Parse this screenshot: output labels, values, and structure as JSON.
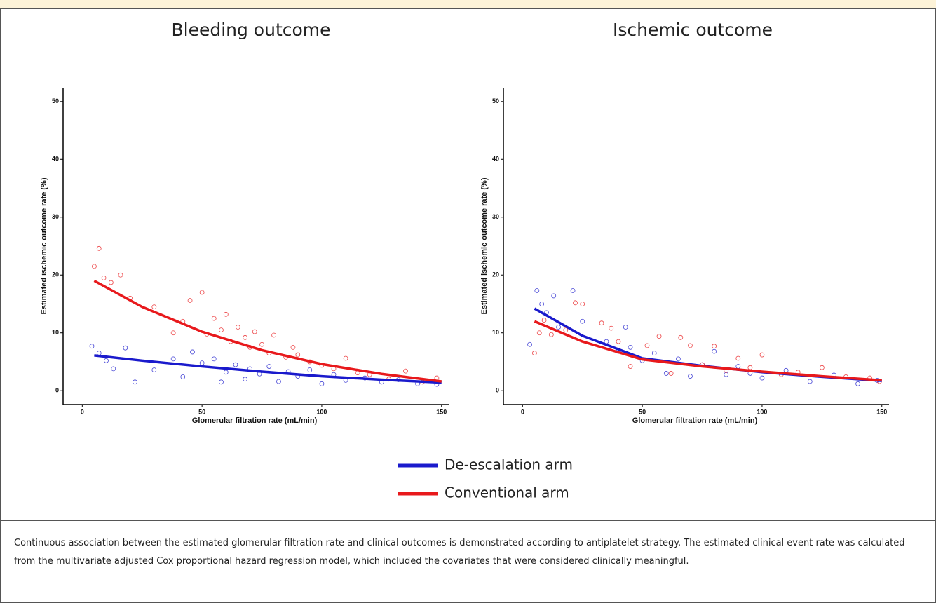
{
  "chart_data": [
    {
      "type": "scatter",
      "title": "Bleeding outcome",
      "x_label": "Glomerular filtration rate (mL/min)",
      "y_label": "Estimated ischemic outcome rate (%)",
      "xlim": [
        -8,
        153
      ],
      "ylim": [
        -2.4,
        52.4
      ],
      "xticks": [
        0,
        50,
        100,
        150
      ],
      "yticks": [
        0,
        10,
        20,
        30,
        40,
        50
      ],
      "series": [
        {
          "color": "#1a1acc",
          "points": {
            "x": [
              4,
              7,
              10,
              13,
              18,
              22,
              30,
              38,
              42,
              46,
              50,
              55,
              58,
              60,
              64,
              68,
              70,
              74,
              78,
              82,
              86,
              90,
              95,
              100,
              105,
              110,
              118,
              125,
              132,
              140,
              148
            ],
            "values": [
              7.7,
              6.5,
              5.2,
              3.8,
              7.4,
              1.5,
              3.6,
              5.5,
              2.4,
              6.7,
              4.8,
              5.5,
              1.5,
              3.2,
              4.5,
              2,
              3.8,
              2.9,
              4.2,
              1.6,
              3.3,
              2.5,
              3.6,
              1.2,
              2.8,
              1.8,
              2.2,
              1.5,
              1.9,
              1.2,
              1.1
            ]
          },
          "fit": {
            "x": [
              5,
              25,
              50,
              75,
              100,
              125,
              150
            ],
            "values": [
              6.1,
              5.2,
              4.2,
              3.3,
              2.5,
              1.9,
              1.4
            ]
          }
        },
        {
          "color": "#e8191c",
          "points": {
            "x": [
              5,
              7,
              9,
              12,
              16,
              20,
              30,
              38,
              42,
              45,
              50,
              52,
              55,
              58,
              60,
              62,
              65,
              68,
              70,
              72,
              75,
              78,
              80,
              85,
              88,
              90,
              95,
              100,
              105,
              110,
              115,
              120,
              128,
              135,
              142,
              148
            ],
            "values": [
              21.5,
              24.6,
              19.5,
              18.7,
              20,
              16,
              14.5,
              10,
              12,
              15.6,
              17,
              9.8,
              12.5,
              10.5,
              13.2,
              8.5,
              11,
              9.2,
              7.5,
              10.2,
              8,
              6.5,
              9.6,
              5.8,
              7.5,
              6.2,
              5,
              4.4,
              3.8,
              5.6,
              3.1,
              2.8,
              2,
              3.4,
              1.5,
              2.2
            ]
          },
          "fit": {
            "x": [
              5,
              25,
              50,
              75,
              100,
              125,
              150
            ],
            "values": [
              19,
              14.5,
              10.2,
              7,
              4.6,
              2.9,
              1.6
            ]
          }
        }
      ]
    },
    {
      "type": "scatter",
      "title": "Ischemic outcome",
      "x_label": "Glomerular filtration rate (mL/min)",
      "y_label": "Estimated ischemic outcome rate (%)",
      "xlim": [
        -8,
        153
      ],
      "ylim": [
        -2.4,
        52.4
      ],
      "xticks": [
        0,
        50,
        100,
        150
      ],
      "yticks": [
        0,
        10,
        20,
        30,
        40,
        50
      ],
      "series": [
        {
          "color": "#1a1acc",
          "points": {
            "x": [
              3,
              6,
              8,
              10,
              13,
              15,
              21,
              25,
              35,
              40,
              43,
              45,
              50,
              55,
              60,
              65,
              70,
              75,
              80,
              85,
              90,
              95,
              100,
              110,
              120,
              130,
              140,
              148
            ],
            "values": [
              8,
              17.3,
              15,
              13.5,
              16.4,
              11,
              17.3,
              12,
              8.5,
              6.8,
              11,
              7.5,
              5.2,
              6.5,
              3,
              5.5,
              2.5,
              4.5,
              6.8,
              2.8,
              4.2,
              3,
              2.2,
              3.5,
              1.6,
              2.7,
              1.2,
              1.8
            ]
          },
          "fit": {
            "x": [
              5,
              25,
              50,
              75,
              100,
              125,
              150
            ],
            "values": [
              14.2,
              9.5,
              5.6,
              4.3,
              3.2,
              2.4,
              1.7
            ]
          }
        },
        {
          "color": "#e8191c",
          "points": {
            "x": [
              5,
              7,
              9,
              12,
              18,
              22,
              25,
              33,
              37,
              40,
              45,
              52,
              57,
              62,
              66,
              70,
              75,
              80,
              85,
              90,
              95,
              100,
              108,
              115,
              125,
              135,
              145,
              149
            ],
            "values": [
              6.5,
              10,
              12.2,
              9.7,
              10.5,
              15.2,
              15,
              11.7,
              10.8,
              8.5,
              4.2,
              7.8,
              9.4,
              3,
              9.2,
              7.8,
              4.5,
              7.7,
              3.5,
              5.6,
              4,
              6.2,
              2.8,
              3.2,
              4,
              2.4,
              2.2,
              1.6
            ]
          },
          "fit": {
            "x": [
              5,
              25,
              50,
              75,
              100,
              125,
              150
            ],
            "values": [
              12,
              8.5,
              5.4,
              4.2,
              3.3,
              2.5,
              1.8
            ]
          }
        }
      ]
    }
  ],
  "legend": [
    {
      "name": "De-escalation arm",
      "color": "#1a1acc"
    },
    {
      "name": "Conventional arm",
      "color": "#e8191c"
    }
  ],
  "caption": "Continuous association between the estimated glomerular filtration rate and clinical outcomes is demonstrated according to antiplatelet strategy. The estimated clinical event rate was calculated from the multivariate adjusted Cox proportional hazard regression model, which included the covariates that were considered clinically meaningful."
}
